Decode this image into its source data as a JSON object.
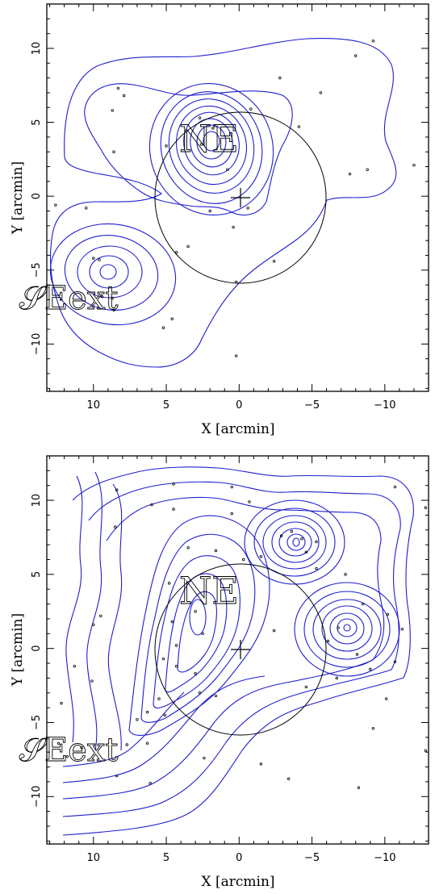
{
  "chart_data": [
    {
      "type": "scatter",
      "panel": "top",
      "xlabel": "X [arcmin]",
      "ylabel": "Y [arcmin]",
      "xlim": [
        13.2,
        -13
      ],
      "ylim": [
        -13.2,
        13
      ],
      "xticks": [
        10,
        5,
        0,
        -5,
        -10
      ],
      "yticks": [
        10,
        5,
        0,
        -5,
        -10
      ],
      "tick_labels_x": [
        "10",
        "5",
        "0",
        "−5",
        "−10"
      ],
      "tick_labels_y": [
        "10",
        "5",
        "0",
        "−5",
        "−10"
      ],
      "annotations": [
        {
          "text": "NE",
          "x": 2.3,
          "y": 4.0
        },
        {
          "text": "𝒮Eext",
          "x": 10.5,
          "y": -6.8
        }
      ],
      "circle": {
        "center": [
          0,
          0
        ],
        "radius": 5.8
      },
      "center_marker": [
        0,
        0
      ],
      "contour_peaks": [
        {
          "x": 2.0,
          "y": 3.8,
          "levels": 9
        },
        {
          "x": 9.7,
          "y": -5.0,
          "levels": 5
        }
      ],
      "points": [
        [
          -9.2,
          10.5
        ],
        [
          -8.0,
          9.5
        ],
        [
          -2.8,
          8.0
        ],
        [
          -5.6,
          7.0
        ],
        [
          8.3,
          7.3
        ],
        [
          7.9,
          6.8
        ],
        [
          2.7,
          5.3
        ],
        [
          -0.8,
          5.9
        ],
        [
          -4.1,
          4.7
        ],
        [
          8.7,
          5.8
        ],
        [
          8.6,
          3.0
        ],
        [
          -7.6,
          1.5
        ],
        [
          -8.8,
          1.8
        ],
        [
          -12.0,
          2.1
        ],
        [
          0.8,
          1.8
        ],
        [
          -0.6,
          -0.8
        ],
        [
          2.0,
          -1.0
        ],
        [
          0.4,
          -2.1
        ],
        [
          12.6,
          -0.6
        ],
        [
          10.5,
          -0.8
        ],
        [
          3.5,
          -3.4
        ],
        [
          4.3,
          -3.8
        ],
        [
          -2.4,
          -4.4
        ],
        [
          0.2,
          -5.8
        ],
        [
          10.0,
          -4.2
        ],
        [
          9.6,
          -4.3
        ],
        [
          8.6,
          -7.7
        ],
        [
          9.4,
          -6.8
        ],
        [
          8.7,
          -6.9
        ],
        [
          5.2,
          -8.9
        ],
        [
          4.6,
          -8.3
        ],
        [
          0.2,
          -10.8
        ],
        [
          5.0,
          3.4
        ],
        [
          1.8,
          4.6
        ],
        [
          2.6,
          3.5
        ]
      ]
    },
    {
      "type": "scatter",
      "panel": "bottom",
      "xlabel": "X [arcmin]",
      "ylabel": "Y [arcmin]",
      "xlim": [
        13.2,
        -13
      ],
      "ylim": [
        -13.2,
        13
      ],
      "xticks": [
        10,
        5,
        0,
        -5,
        -10
      ],
      "yticks": [
        10,
        5,
        0,
        -5,
        -10
      ],
      "tick_labels_x": [
        "10",
        "5",
        "0",
        "−5",
        "−10"
      ],
      "tick_labels_y": [
        "10",
        "5",
        "0",
        "−5",
        "−10"
      ],
      "annotations": [
        {
          "text": "NE",
          "x": 2.3,
          "y": 4.0
        },
        {
          "text": "𝒮Eext",
          "x": 10.5,
          "y": -6.8
        }
      ],
      "circle": {
        "center": [
          0,
          0
        ],
        "radius": 5.8
      },
      "center_marker": [
        0,
        0
      ],
      "contour_peaks": [
        {
          "x": -3.8,
          "y": 7.3,
          "levels": 7
        },
        {
          "x": -7.2,
          "y": 1.3,
          "levels": 7
        },
        {
          "x": 3.0,
          "y": 1.5,
          "levels": 6
        }
      ],
      "points": [
        [
          8.4,
          10.7
        ],
        [
          4.5,
          11.1
        ],
        [
          0.5,
          10.9
        ],
        [
          -0.7,
          9.9
        ],
        [
          -10.7,
          10.9
        ],
        [
          -12.8,
          9.5
        ],
        [
          4.5,
          9.4
        ],
        [
          6.0,
          9.7
        ],
        [
          8.5,
          8.2
        ],
        [
          0.5,
          9.1
        ],
        [
          -3.6,
          7.9
        ],
        [
          -4.3,
          7.4
        ],
        [
          -2.9,
          7.6
        ],
        [
          -5.3,
          7.2
        ],
        [
          -4.6,
          6.5
        ],
        [
          -1.5,
          6.2
        ],
        [
          -0.3,
          6.0
        ],
        [
          3.5,
          6.8
        ],
        [
          1.6,
          6.6
        ],
        [
          -5.3,
          5.4
        ],
        [
          -7.3,
          5.0
        ],
        [
          4.8,
          4.4
        ],
        [
          4.6,
          1.8
        ],
        [
          -8.5,
          3.0
        ],
        [
          -10.2,
          2.3
        ],
        [
          -11.2,
          1.3
        ],
        [
          9.5,
          2.2
        ],
        [
          10.0,
          1.6
        ],
        [
          3.0,
          2.5
        ],
        [
          2.5,
          1.0
        ],
        [
          4.3,
          0.2
        ],
        [
          5.2,
          -0.7
        ],
        [
          4.3,
          -1.2
        ],
        [
          -6.1,
          0.5
        ],
        [
          -6.8,
          1.4
        ],
        [
          -8.1,
          -0.4
        ],
        [
          -9.0,
          -1.4
        ],
        [
          -10.7,
          -0.9
        ],
        [
          -2.4,
          1.2
        ],
        [
          -6.7,
          -2.0
        ],
        [
          -10.1,
          -3.4
        ],
        [
          11.3,
          -1.2
        ],
        [
          12.2,
          -3.7
        ],
        [
          10.1,
          -2.2
        ],
        [
          3.0,
          -1.7
        ],
        [
          2.7,
          -3.0
        ],
        [
          1.6,
          -3.2
        ],
        [
          5.5,
          -3.4
        ],
        [
          6.3,
          -4.3
        ],
        [
          7.0,
          -4.8
        ],
        [
          5.1,
          -4.5
        ],
        [
          -4.6,
          -2.6
        ],
        [
          12.4,
          -6.4
        ],
        [
          11.8,
          -7.3
        ],
        [
          10.8,
          -6.7
        ],
        [
          7.7,
          -6.5
        ],
        [
          6.3,
          -6.4
        ],
        [
          8.4,
          -8.6
        ],
        [
          6.1,
          -9.1
        ],
        [
          -1.5,
          -7.8
        ],
        [
          -3.4,
          -8.8
        ],
        [
          -8.2,
          -9.4
        ],
        [
          -12.8,
          -6.9
        ],
        [
          -9.2,
          -5.4
        ],
        [
          2.4,
          -7.4
        ]
      ]
    }
  ]
}
